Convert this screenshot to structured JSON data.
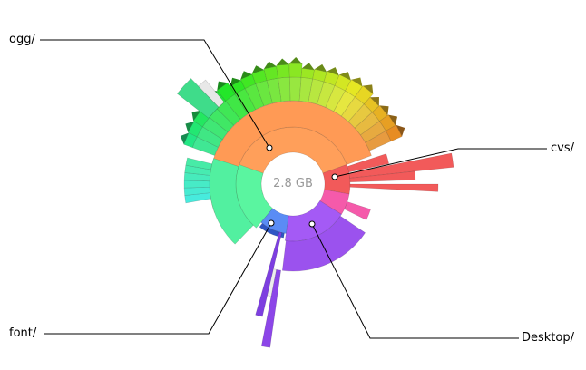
{
  "center": {
    "total_label": "2.8 GB"
  },
  "callouts": [
    {
      "id": "ogg",
      "label": "ogg/"
    },
    {
      "id": "cvs",
      "label": "cvs/"
    },
    {
      "id": "font",
      "label": "font/"
    },
    {
      "id": "desktop",
      "label": "Desktop/"
    }
  ],
  "colors": {
    "background": "#ffffff",
    "center_text": "#999999",
    "callout_line": "#000000",
    "ogg": "#ff9f5a",
    "cvs": "#f25a5a",
    "font": "#5a8cf5",
    "desktop": "#a45af5",
    "pink": "#f55aaa",
    "mint": "#5af5a0"
  }
}
